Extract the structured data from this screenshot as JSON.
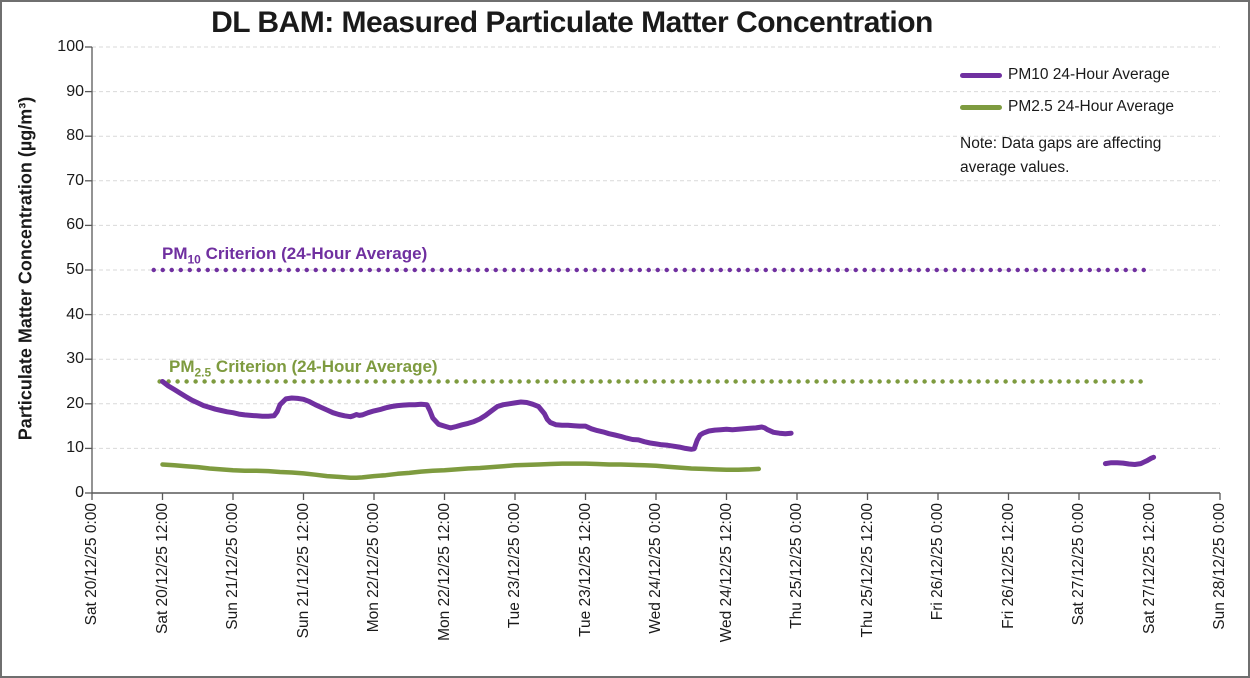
{
  "title": "DL BAM: Measured Particulate Matter Concentration",
  "note": "Note: Data gaps are affecting average values.",
  "colors": {
    "pm10": "#7030A0",
    "pm25": "#7E9B3F",
    "gridline": "#D9D9D9",
    "axis": "#595959",
    "text": "#1a1a1a"
  },
  "legend": {
    "items": [
      {
        "label": "PM10 24-Hour Average",
        "color": "#7030A0"
      },
      {
        "label": "PM2.5 24-Hour Average",
        "color": "#7E9B3F"
      }
    ]
  },
  "chart_data": {
    "type": "line",
    "title": "DL BAM: Measured Particulate Matter Concentration",
    "xlabel": "",
    "ylabel": "Particulate Matter Concentration (µg/m³)",
    "ylim": [
      0,
      100
    ],
    "y_ticks": [
      0,
      10,
      20,
      30,
      40,
      50,
      60,
      70,
      80,
      90,
      100
    ],
    "grid": "horizontal-dashed",
    "legend_position": "top-right",
    "x_axis": {
      "unit": "datetime, hours since Sat 20/12/25 0:00",
      "tick_hours": [
        0,
        12,
        24,
        36,
        48,
        60,
        72,
        84,
        96,
        108,
        120,
        132,
        144,
        156,
        168,
        180,
        192
      ],
      "tick_labels": [
        "Sat 20/12/25 0:00",
        "Sat 20/12/25 12:00",
        "Sun 21/12/25 0:00",
        "Sun 21/12/25 12:00",
        "Mon 22/12/25 0:00",
        "Mon 22/12/25 12:00",
        "Tue 23/12/25 0:00",
        "Tue 23/12/25 12:00",
        "Wed 24/12/25 0:00",
        "Wed 24/12/25 12:00",
        "Thu 25/12/25 0:00",
        "Thu 25/12/25 12:00",
        "Fri 26/12/25 0:00",
        "Fri 26/12/25 12:00",
        "Sat 27/12/25 0:00",
        "Sat 27/12/25 12:00",
        "Sun 28/12/25 0:00"
      ]
    },
    "criteria": [
      {
        "name": "pm10-criterion",
        "label_prefix": "PM",
        "label_sub": "10",
        "label_suffix": " Criterion (24-Hour Average)",
        "value": 50,
        "color": "#7030A0",
        "start_hour": 10.5,
        "end_hour": 180
      },
      {
        "name": "pm2.5-criterion",
        "label_prefix": "PM",
        "label_sub": "2.5",
        "label_suffix": " Criterion (24-Hour Average)",
        "value": 25,
        "color": "#7E9B3F",
        "start_hour": 11.5,
        "end_hour": 180
      }
    ],
    "series": [
      {
        "name": "PM10 24-Hour Average",
        "color": "#7030A0",
        "width": 5,
        "segments": [
          [
            [
              12,
              25.0
            ],
            [
              13,
              24.0
            ],
            [
              14,
              23.2
            ],
            [
              15,
              22.4
            ],
            [
              16,
              21.6
            ],
            [
              17,
              20.8
            ],
            [
              18,
              20.2
            ],
            [
              19,
              19.6
            ],
            [
              20,
              19.2
            ],
            [
              21,
              18.8
            ],
            [
              22,
              18.5
            ],
            [
              23,
              18.2
            ],
            [
              24,
              18.0
            ],
            [
              25,
              17.7
            ],
            [
              26,
              17.5
            ],
            [
              27,
              17.4
            ],
            [
              28,
              17.3
            ],
            [
              29,
              17.2
            ],
            [
              30,
              17.2
            ],
            [
              31,
              17.3
            ],
            [
              31.5,
              18.2
            ],
            [
              32,
              19.8
            ],
            [
              33,
              21.1
            ],
            [
              34,
              21.3
            ],
            [
              35,
              21.2
            ],
            [
              36,
              21.0
            ],
            [
              37,
              20.5
            ],
            [
              38,
              19.8
            ],
            [
              39,
              19.2
            ],
            [
              40,
              18.6
            ],
            [
              41,
              18.0
            ],
            [
              42,
              17.6
            ],
            [
              43,
              17.3
            ],
            [
              44,
              17.1
            ],
            [
              44.5,
              17.3
            ],
            [
              45,
              17.6
            ],
            [
              45.5,
              17.4
            ],
            [
              46,
              17.5
            ],
            [
              47,
              18.0
            ],
            [
              48,
              18.4
            ],
            [
              49,
              18.7
            ],
            [
              50,
              19.1
            ],
            [
              51,
              19.4
            ],
            [
              52,
              19.6
            ],
            [
              53,
              19.7
            ],
            [
              54,
              19.8
            ],
            [
              55,
              19.8
            ],
            [
              56,
              19.9
            ],
            [
              57,
              19.8
            ],
            [
              57.5,
              18.5
            ],
            [
              58,
              16.8
            ],
            [
              59,
              15.4
            ],
            [
              60,
              15.0
            ],
            [
              61,
              14.6
            ],
            [
              62,
              14.9
            ],
            [
              63,
              15.3
            ],
            [
              64,
              15.6
            ],
            [
              65,
              16.0
            ],
            [
              66,
              16.6
            ],
            [
              67,
              17.4
            ],
            [
              68,
              18.4
            ],
            [
              69,
              19.4
            ],
            [
              70,
              19.8
            ],
            [
              71,
              20.0
            ],
            [
              72,
              20.2
            ],
            [
              73,
              20.4
            ],
            [
              74,
              20.3
            ],
            [
              75,
              19.9
            ],
            [
              76,
              19.4
            ],
            [
              77,
              17.8
            ],
            [
              77.5,
              16.5
            ],
            [
              78,
              15.8
            ],
            [
              79,
              15.3
            ],
            [
              80,
              15.2
            ],
            [
              81,
              15.2
            ],
            [
              82,
              15.1
            ],
            [
              83,
              15.0
            ],
            [
              84,
              15.0
            ],
            [
              85,
              14.4
            ],
            [
              86,
              14.0
            ],
            [
              87,
              13.7
            ],
            [
              88,
              13.3
            ],
            [
              89,
              13.0
            ],
            [
              90,
              12.7
            ],
            [
              91,
              12.3
            ],
            [
              92,
              12.0
            ],
            [
              93,
              11.9
            ],
            [
              94,
              11.5
            ],
            [
              95,
              11.2
            ],
            [
              96,
              11.0
            ],
            [
              97,
              10.8
            ],
            [
              98,
              10.7
            ],
            [
              99,
              10.5
            ],
            [
              100,
              10.3
            ],
            [
              101,
              10.0
            ],
            [
              102,
              9.8
            ],
            [
              102.5,
              9.9
            ],
            [
              103,
              11.8
            ],
            [
              103.5,
              13.0
            ],
            [
              104,
              13.4
            ],
            [
              105,
              13.9
            ],
            [
              106,
              14.1
            ],
            [
              107,
              14.2
            ],
            [
              108,
              14.3
            ],
            [
              109,
              14.2
            ],
            [
              110,
              14.3
            ],
            [
              111,
              14.4
            ],
            [
              112,
              14.5
            ],
            [
              113,
              14.6
            ],
            [
              114,
              14.8
            ],
            [
              114.5,
              14.6
            ],
            [
              115,
              14.2
            ],
            [
              116,
              13.6
            ],
            [
              117,
              13.4
            ],
            [
              118,
              13.3
            ],
            [
              119,
              13.4
            ]
          ],
          [
            [
              172.5,
              6.6
            ],
            [
              173.5,
              6.8
            ],
            [
              174.5,
              6.8
            ],
            [
              175.5,
              6.7
            ],
            [
              176.5,
              6.5
            ],
            [
              177.5,
              6.4
            ],
            [
              178.5,
              6.6
            ],
            [
              179.5,
              7.2
            ],
            [
              180.3,
              7.8
            ],
            [
              180.7,
              8.0
            ]
          ]
        ]
      },
      {
        "name": "PM2.5 24-Hour Average",
        "color": "#7E9B3F",
        "width": 4.5,
        "segments": [
          [
            [
              12,
              6.4
            ],
            [
              14,
              6.2
            ],
            [
              16,
              6.0
            ],
            [
              18,
              5.8
            ],
            [
              20,
              5.5
            ],
            [
              22,
              5.3
            ],
            [
              24,
              5.1
            ],
            [
              26,
              5.0
            ],
            [
              28,
              5.0
            ],
            [
              30,
              4.9
            ],
            [
              32,
              4.7
            ],
            [
              34,
              4.6
            ],
            [
              36,
              4.4
            ],
            [
              38,
              4.1
            ],
            [
              40,
              3.8
            ],
            [
              42,
              3.6
            ],
            [
              44,
              3.4
            ],
            [
              45,
              3.4
            ],
            [
              46,
              3.5
            ],
            [
              48,
              3.8
            ],
            [
              50,
              4.0
            ],
            [
              52,
              4.3
            ],
            [
              54,
              4.5
            ],
            [
              56,
              4.8
            ],
            [
              58,
              5.0
            ],
            [
              60,
              5.1
            ],
            [
              62,
              5.3
            ],
            [
              64,
              5.5
            ],
            [
              66,
              5.6
            ],
            [
              68,
              5.8
            ],
            [
              70,
              6.0
            ],
            [
              72,
              6.2
            ],
            [
              74,
              6.3
            ],
            [
              76,
              6.4
            ],
            [
              78,
              6.5
            ],
            [
              80,
              6.6
            ],
            [
              82,
              6.6
            ],
            [
              84,
              6.6
            ],
            [
              86,
              6.5
            ],
            [
              88,
              6.4
            ],
            [
              90,
              6.4
            ],
            [
              92,
              6.3
            ],
            [
              94,
              6.2
            ],
            [
              96,
              6.1
            ],
            [
              98,
              5.9
            ],
            [
              100,
              5.7
            ],
            [
              102,
              5.5
            ],
            [
              104,
              5.4
            ],
            [
              106,
              5.3
            ],
            [
              108,
              5.2
            ],
            [
              110,
              5.2
            ],
            [
              112,
              5.3
            ],
            [
              113.5,
              5.4
            ]
          ]
        ]
      }
    ]
  }
}
